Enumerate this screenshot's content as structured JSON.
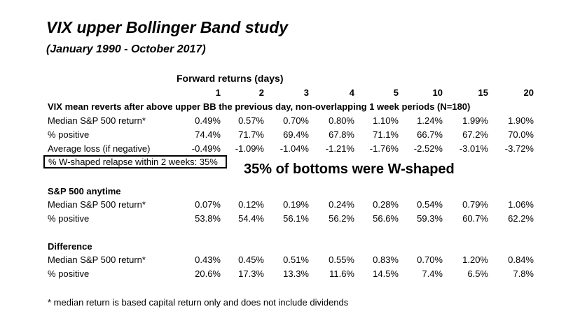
{
  "title": "VIX upper Bollinger Band study",
  "subtitle": "(January 1990 - October 2017)",
  "forward_header": "Forward returns (days)",
  "days": [
    "1",
    "2",
    "3",
    "4",
    "5",
    "10",
    "15",
    "20"
  ],
  "section1": {
    "heading": "VIX mean reverts after above upper BB the previous day, non-overlapping 1 week periods (N=180)",
    "rows": [
      {
        "label": "Median S&P 500 return*",
        "values": [
          "0.49%",
          "0.57%",
          "0.70%",
          "0.80%",
          "1.10%",
          "1.24%",
          "1.99%",
          "1.90%"
        ]
      },
      {
        "label": "% positive",
        "values": [
          "74.4%",
          "71.7%",
          "69.4%",
          "67.8%",
          "71.1%",
          "66.7%",
          "67.2%",
          "70.0%"
        ]
      },
      {
        "label": "Average loss (if negative)",
        "values": [
          "-0.49%",
          "-1.09%",
          "-1.04%",
          "-1.21%",
          "-1.76%",
          "-2.52%",
          "-3.01%",
          "-3.72%"
        ]
      }
    ],
    "boxed_note": "% W-shaped relapse within 2 weeks: 35%",
    "callout": "35% of bottoms were W-shaped"
  },
  "section2": {
    "heading": "S&P 500 anytime",
    "rows": [
      {
        "label": "Median S&P 500 return*",
        "values": [
          "0.07%",
          "0.12%",
          "0.19%",
          "0.24%",
          "0.28%",
          "0.54%",
          "0.79%",
          "1.06%"
        ]
      },
      {
        "label": "% positive",
        "values": [
          "53.8%",
          "54.4%",
          "56.1%",
          "56.2%",
          "56.6%",
          "59.3%",
          "60.7%",
          "62.2%"
        ]
      }
    ]
  },
  "section3": {
    "heading": "Difference",
    "rows": [
      {
        "label": "Median S&P 500 return*",
        "values": [
          "0.43%",
          "0.45%",
          "0.51%",
          "0.55%",
          "0.83%",
          "0.70%",
          "1.20%",
          "0.84%"
        ]
      },
      {
        "label": "% positive",
        "values": [
          "20.6%",
          "17.3%",
          "13.3%",
          "11.6%",
          "14.5%",
          "7.4%",
          "6.5%",
          "7.8%"
        ]
      }
    ]
  },
  "footnote": "* median return is based capital return only and does not include dividends"
}
